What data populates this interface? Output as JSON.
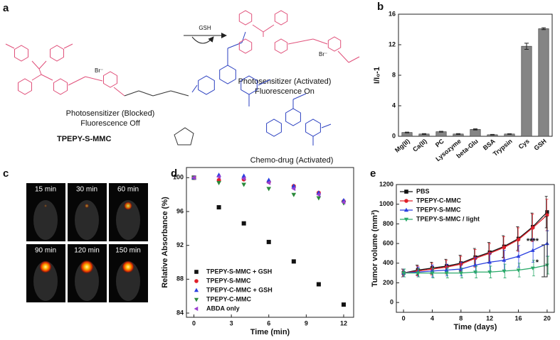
{
  "figure": {
    "a": {
      "panel": "a",
      "counterion": "Br⁻",
      "blocked_line1": "Photosensitizer (Blocked)",
      "blocked_line2": "Fluorescence Off",
      "compound": "TPEPY-S-MMC",
      "reagent": "GSH",
      "activated_line1": "Photosensitizer (Activated)",
      "activated_line2": "Fluorescence On",
      "drug": "Chemo-drug (Activated)"
    },
    "c": {
      "panel": "c",
      "times": [
        "15 min",
        "30 min",
        "60 min",
        "90 min",
        "120 min",
        "150 min"
      ]
    }
  },
  "chart_data": [
    {
      "panel": "b",
      "type": "bar",
      "ylabel": "I/I₀-1",
      "categories": [
        "Mg(II)",
        "Ca(II)",
        "PC",
        "Lysozyme",
        "beta-Glu",
        "BSA",
        "Trypsin",
        "Cys",
        "GSH"
      ],
      "values": [
        0.5,
        0.3,
        0.6,
        0.3,
        0.9,
        0.2,
        0.3,
        11.8,
        14.1
      ],
      "errors": [
        0.05,
        0.05,
        0.05,
        0.05,
        0.08,
        0.04,
        0.04,
        0.4,
        0.12
      ],
      "color": "#858585",
      "ylim": [
        0,
        16
      ],
      "yticks": [
        0,
        4,
        8,
        12,
        16
      ]
    },
    {
      "panel": "d",
      "type": "scatter",
      "xlabel": "Time (min)",
      "ylabel": "Relative Absorbance (%)",
      "x": [
        0,
        2,
        4,
        6,
        8,
        10,
        12
      ],
      "series": [
        {
          "name": "TPEPY-S-MMC + GSH",
          "color": "#111111",
          "marker": "square",
          "values": [
            100,
            96.5,
            94.6,
            92.4,
            90.1,
            87.4,
            85.0
          ]
        },
        {
          "name": "TPEPY-S-MMC",
          "color": "#e0202a",
          "marker": "circle",
          "values": [
            100,
            99.7,
            99.8,
            99.5,
            99.0,
            98.2,
            97.2
          ]
        },
        {
          "name": "TPEPY-C-MMC + GSH",
          "color": "#2a3fe0",
          "marker": "triangle-up",
          "values": [
            100,
            100.3,
            100.2,
            99.7,
            99.0,
            98.2,
            97.3
          ]
        },
        {
          "name": "TPEPY-C-MMC",
          "color": "#2a8a3a",
          "marker": "triangle-down",
          "values": [
            100,
            99.4,
            99.2,
            98.7,
            98.0,
            97.6,
            97.0
          ]
        },
        {
          "name": "ABDA only",
          "color": "#9a3fd0",
          "marker": "triangle-left",
          "values": [
            100,
            100.1,
            99.9,
            99.4,
            98.7,
            98.0,
            97.1
          ]
        }
      ],
      "xlim": [
        -0.6,
        12.8
      ],
      "ylim": [
        83.5,
        101.2
      ],
      "xticks": [
        0,
        3,
        6,
        9,
        12
      ],
      "yticks": [
        84,
        88,
        92,
        96,
        100
      ],
      "legend": "lower left"
    },
    {
      "panel": "e",
      "type": "line",
      "xlabel": "Time (days)",
      "ylabel": "Tumor volume (mm³)",
      "x": [
        0,
        2,
        4,
        6,
        8,
        10,
        12,
        14,
        16,
        18,
        20
      ],
      "series": [
        {
          "name": "PBS",
          "color": "#111111",
          "marker": "square",
          "values": [
            300,
            330,
            350,
            370,
            400,
            460,
            510,
            570,
            650,
            770,
            920
          ],
          "errors": [
            40,
            50,
            60,
            70,
            80,
            90,
            100,
            110,
            120,
            140,
            160
          ]
        },
        {
          "name": "TPEPY-C-MMC",
          "color": "#e0202a",
          "marker": "circle",
          "values": [
            300,
            320,
            340,
            360,
            390,
            450,
            500,
            560,
            640,
            760,
            890
          ],
          "errors": [
            40,
            50,
            60,
            70,
            80,
            90,
            100,
            110,
            120,
            140,
            160
          ]
        },
        {
          "name": "TPEPY-S-MMC",
          "color": "#2a3fe0",
          "marker": "triangle-up",
          "values": [
            300,
            310,
            320,
            330,
            340,
            380,
            410,
            430,
            470,
            530,
            600
          ],
          "errors": [
            40,
            50,
            60,
            60,
            70,
            80,
            90,
            100,
            110,
            120,
            130
          ]
        },
        {
          "name": "TPEPY-S-MMC / light",
          "color": "#2aaa6a",
          "marker": "triangle-down",
          "values": [
            300,
            300,
            300,
            300,
            300,
            310,
            310,
            320,
            330,
            350,
            380
          ],
          "errors": [
            40,
            40,
            50,
            50,
            50,
            60,
            60,
            70,
            70,
            80,
            90
          ]
        }
      ],
      "annotations": [
        "****",
        "*"
      ],
      "xlim": [
        -1,
        21
      ],
      "ylim": [
        -100,
        1200
      ],
      "xticks": [
        0,
        4,
        8,
        12,
        16,
        20
      ],
      "yticks": [
        0,
        200,
        400,
        600,
        800,
        1000,
        1200
      ],
      "legend": "upper left"
    }
  ]
}
